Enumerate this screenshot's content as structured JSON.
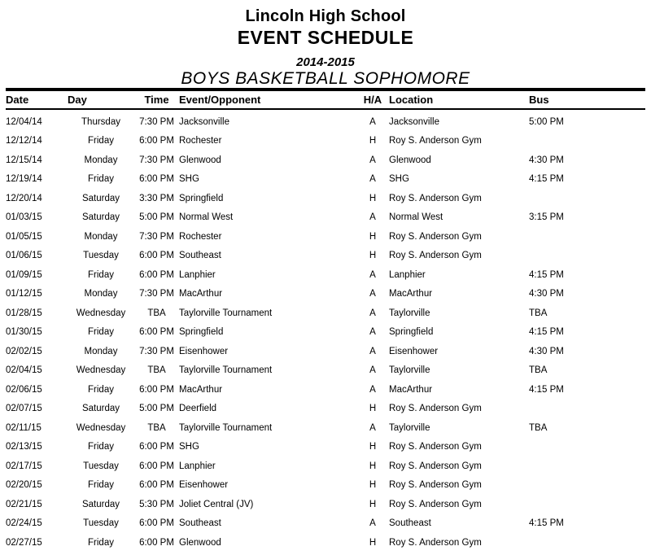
{
  "header": {
    "school": "Lincoln High School",
    "title": "EVENT SCHEDULE",
    "season": "2014-2015",
    "team": "BOYS BASKETBALL SOPHOMORE"
  },
  "table": {
    "columns": [
      {
        "key": "date",
        "label": "Date"
      },
      {
        "key": "day",
        "label": "Day"
      },
      {
        "key": "time",
        "label": "Time"
      },
      {
        "key": "event",
        "label": "Event/Opponent"
      },
      {
        "key": "ha",
        "label": "H/A"
      },
      {
        "key": "location",
        "label": "Location"
      },
      {
        "key": "bus",
        "label": "Bus"
      }
    ],
    "rows": [
      {
        "date": "12/04/14",
        "day": "Thursday",
        "time": "7:30 PM",
        "event": "Jacksonville",
        "ha": "A",
        "location": "Jacksonville",
        "bus": "5:00 PM"
      },
      {
        "date": "12/12/14",
        "day": "Friday",
        "time": "6:00 PM",
        "event": "Rochester",
        "ha": "H",
        "location": "Roy S. Anderson Gym",
        "bus": ""
      },
      {
        "date": "12/15/14",
        "day": "Monday",
        "time": "7:30 PM",
        "event": "Glenwood",
        "ha": "A",
        "location": "Glenwood",
        "bus": "4:30 PM"
      },
      {
        "date": "12/19/14",
        "day": "Friday",
        "time": "6:00 PM",
        "event": "SHG",
        "ha": "A",
        "location": "SHG",
        "bus": "4:15 PM"
      },
      {
        "date": "12/20/14",
        "day": "Saturday",
        "time": "3:30 PM",
        "event": "Springfield",
        "ha": "H",
        "location": "Roy S. Anderson Gym",
        "bus": ""
      },
      {
        "date": "01/03/15",
        "day": "Saturday",
        "time": "5:00 PM",
        "event": "Normal West",
        "ha": "A",
        "location": "Normal West",
        "bus": "3:15 PM"
      },
      {
        "date": "01/05/15",
        "day": "Monday",
        "time": "7:30 PM",
        "event": "Rochester",
        "ha": "H",
        "location": "Roy S. Anderson Gym",
        "bus": ""
      },
      {
        "date": "01/06/15",
        "day": "Tuesday",
        "time": "6:00 PM",
        "event": "Southeast",
        "ha": "H",
        "location": "Roy S. Anderson Gym",
        "bus": ""
      },
      {
        "date": "01/09/15",
        "day": "Friday",
        "time": "6:00 PM",
        "event": "Lanphier",
        "ha": "A",
        "location": "Lanphier",
        "bus": "4:15 PM"
      },
      {
        "date": "01/12/15",
        "day": "Monday",
        "time": "7:30 PM",
        "event": "MacArthur",
        "ha": "A",
        "location": "MacArthur",
        "bus": "4:30 PM"
      },
      {
        "date": "01/28/15",
        "day": "Wednesday",
        "time": "TBA",
        "event": "Taylorville Tournament",
        "ha": "A",
        "location": "Taylorville",
        "bus": "TBA"
      },
      {
        "date": "01/30/15",
        "day": "Friday",
        "time": "6:00 PM",
        "event": "Springfield",
        "ha": "A",
        "location": "Springfield",
        "bus": "4:15 PM"
      },
      {
        "date": "02/02/15",
        "day": "Monday",
        "time": "7:30 PM",
        "event": "Eisenhower",
        "ha": "A",
        "location": "Eisenhower",
        "bus": "4:30 PM"
      },
      {
        "date": "02/04/15",
        "day": "Wednesday",
        "time": "TBA",
        "event": "Taylorville Tournament",
        "ha": "A",
        "location": "Taylorville",
        "bus": "TBA"
      },
      {
        "date": "02/06/15",
        "day": "Friday",
        "time": "6:00 PM",
        "event": "MacArthur",
        "ha": "A",
        "location": "MacArthur",
        "bus": "4:15 PM"
      },
      {
        "date": "02/07/15",
        "day": "Saturday",
        "time": "5:00 PM",
        "event": "Deerfield",
        "ha": "H",
        "location": "Roy S. Anderson Gym",
        "bus": ""
      },
      {
        "date": "02/11/15",
        "day": "Wednesday",
        "time": "TBA",
        "event": "Taylorville Tournament",
        "ha": "A",
        "location": "Taylorville",
        "bus": "TBA"
      },
      {
        "date": "02/13/15",
        "day": "Friday",
        "time": "6:00 PM",
        "event": "SHG",
        "ha": "H",
        "location": "Roy S. Anderson Gym",
        "bus": ""
      },
      {
        "date": "02/17/15",
        "day": "Tuesday",
        "time": "6:00 PM",
        "event": "Lanphier",
        "ha": "H",
        "location": "Roy S. Anderson Gym",
        "bus": ""
      },
      {
        "date": "02/20/15",
        "day": "Friday",
        "time": "6:00 PM",
        "event": "Eisenhower",
        "ha": "H",
        "location": "Roy S. Anderson Gym",
        "bus": ""
      },
      {
        "date": "02/21/15",
        "day": "Saturday",
        "time": "5:30 PM",
        "event": "Joliet Central (JV)",
        "ha": "H",
        "location": "Roy S. Anderson Gym",
        "bus": ""
      },
      {
        "date": "02/24/15",
        "day": "Tuesday",
        "time": "6:00 PM",
        "event": "Southeast",
        "ha": "A",
        "location": "Southeast",
        "bus": "4:15 PM"
      },
      {
        "date": "02/27/15",
        "day": "Friday",
        "time": "6:00 PM",
        "event": "Glenwood",
        "ha": "H",
        "location": "Roy S. Anderson Gym",
        "bus": ""
      }
    ]
  }
}
